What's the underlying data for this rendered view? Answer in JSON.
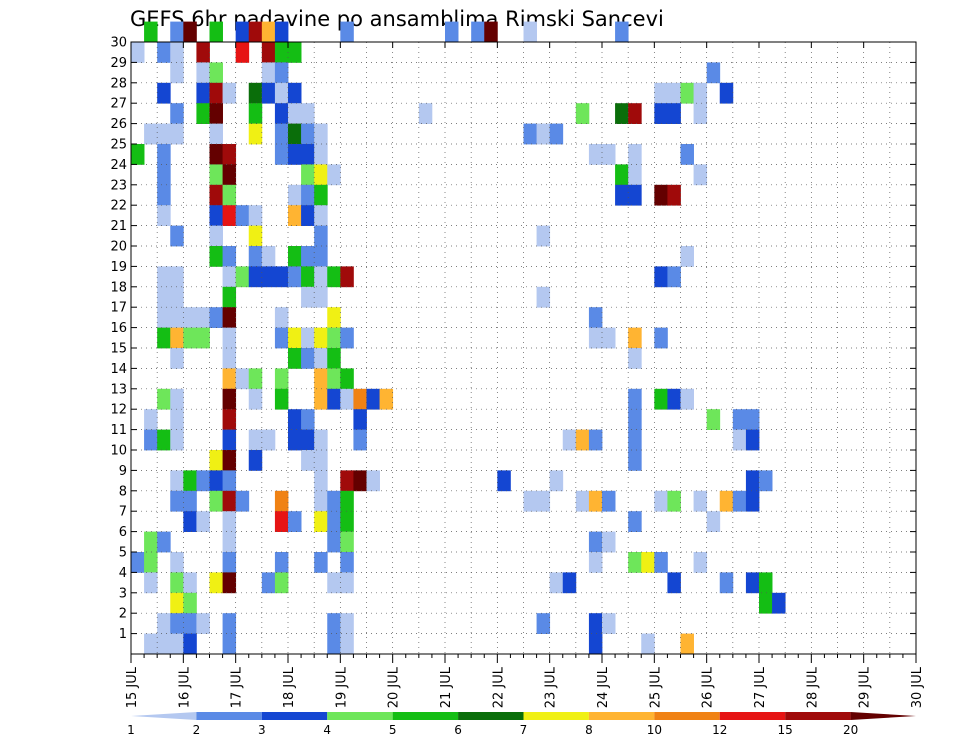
{
  "chart_data": {
    "type": "heatmap",
    "title": "GEFS 6hr padavine po ansamblima Rimski Sancevi",
    "x_ticks": [
      "15 JUL",
      "16 JUL",
      "17 JUL",
      "18 JUL",
      "19 JUL",
      "20 JUL",
      "21 JUL",
      "22 JUL",
      "23 JUL",
      "24 JUL",
      "25 JUL",
      "26 JUL",
      "27 JUL",
      "28 JUL",
      "29 JUL",
      "30 JUL"
    ],
    "y_ticks": [
      "1",
      "2",
      "3",
      "4",
      "5",
      "6",
      "7",
      "8",
      "9",
      "10",
      "11",
      "12",
      "13",
      "14",
      "15",
      "16",
      "17",
      "18",
      "19",
      "20",
      "21",
      "22",
      "23",
      "24",
      "25",
      "26",
      "27",
      "28",
      "29",
      "30"
    ],
    "xlim": [
      0,
      60
    ],
    "ylim": [
      0,
      30
    ],
    "grid": true,
    "colorbar": {
      "labels": [
        "1",
        "2",
        "3",
        "4",
        "5",
        "6",
        "7",
        "8",
        "10",
        "12",
        "15",
        "20"
      ],
      "colors": [
        "#b4c8f0",
        "#5a8ae6",
        "#1446d2",
        "#6ee65a",
        "#14be14",
        "#0a6e0a",
        "#f0f014",
        "#ffb432",
        "#f08214",
        "#e61414",
        "#a00a0a",
        "#640000"
      ]
    },
    "cells": [
      [
        1,
        30,
        4
      ],
      [
        3,
        30,
        1
      ],
      [
        4,
        30,
        11
      ],
      [
        6,
        30,
        4
      ],
      [
        8,
        30,
        2
      ],
      [
        9,
        30,
        10
      ],
      [
        10,
        30,
        7
      ],
      [
        11,
        30,
        2
      ],
      [
        16,
        30,
        1
      ],
      [
        24,
        30,
        1
      ],
      [
        26,
        30,
        1
      ],
      [
        27,
        30,
        11
      ],
      [
        30,
        30,
        0
      ],
      [
        37,
        30,
        1
      ],
      [
        0,
        29,
        0
      ],
      [
        2,
        29,
        1
      ],
      [
        3,
        29,
        0
      ],
      [
        5,
        29,
        10
      ],
      [
        8,
        29,
        9
      ],
      [
        10,
        29,
        10
      ],
      [
        11,
        29,
        4
      ],
      [
        12,
        29,
        4
      ],
      [
        3,
        28,
        0
      ],
      [
        5,
        28,
        0
      ],
      [
        6,
        28,
        3
      ],
      [
        10,
        28,
        0
      ],
      [
        11,
        28,
        1
      ],
      [
        44,
        28,
        1
      ],
      [
        2,
        27,
        2
      ],
      [
        5,
        27,
        2
      ],
      [
        6,
        27,
        10
      ],
      [
        7,
        27,
        0
      ],
      [
        9,
        27,
        5
      ],
      [
        10,
        27,
        2
      ],
      [
        11,
        27,
        0
      ],
      [
        12,
        27,
        2
      ],
      [
        40,
        27,
        0
      ],
      [
        41,
        27,
        0
      ],
      [
        42,
        27,
        3
      ],
      [
        43,
        27,
        0
      ],
      [
        45,
        27,
        2
      ],
      [
        3,
        26,
        1
      ],
      [
        5,
        26,
        4
      ],
      [
        6,
        26,
        11
      ],
      [
        9,
        26,
        4
      ],
      [
        11,
        26,
        2
      ],
      [
        12,
        26,
        0
      ],
      [
        13,
        26,
        0
      ],
      [
        22,
        26,
        0
      ],
      [
        34,
        26,
        3
      ],
      [
        37,
        26,
        5
      ],
      [
        38,
        26,
        10
      ],
      [
        40,
        26,
        2
      ],
      [
        41,
        26,
        2
      ],
      [
        43,
        26,
        0
      ],
      [
        1,
        25,
        0
      ],
      [
        2,
        25,
        0
      ],
      [
        3,
        25,
        0
      ],
      [
        6,
        25,
        0
      ],
      [
        9,
        25,
        6
      ],
      [
        11,
        25,
        1
      ],
      [
        12,
        25,
        5
      ],
      [
        13,
        25,
        1
      ],
      [
        14,
        25,
        0
      ],
      [
        30,
        25,
        1
      ],
      [
        31,
        25,
        0
      ],
      [
        32,
        25,
        1
      ],
      [
        0,
        24,
        4
      ],
      [
        2,
        24,
        1
      ],
      [
        6,
        24,
        11
      ],
      [
        7,
        24,
        10
      ],
      [
        11,
        24,
        1
      ],
      [
        12,
        24,
        2
      ],
      [
        13,
        24,
        2
      ],
      [
        14,
        24,
        0
      ],
      [
        35,
        24,
        0
      ],
      [
        36,
        24,
        0
      ],
      [
        38,
        24,
        0
      ],
      [
        42,
        24,
        1
      ],
      [
        2,
        23,
        1
      ],
      [
        6,
        23,
        3
      ],
      [
        7,
        23,
        11
      ],
      [
        13,
        23,
        3
      ],
      [
        14,
        23,
        6
      ],
      [
        15,
        23,
        0
      ],
      [
        37,
        23,
        4
      ],
      [
        38,
        23,
        0
      ],
      [
        43,
        23,
        0
      ],
      [
        2,
        22,
        1
      ],
      [
        6,
        22,
        10
      ],
      [
        7,
        22,
        3
      ],
      [
        12,
        22,
        0
      ],
      [
        13,
        22,
        1
      ],
      [
        14,
        22,
        4
      ],
      [
        37,
        22,
        2
      ],
      [
        38,
        22,
        2
      ],
      [
        40,
        22,
        11
      ],
      [
        41,
        22,
        10
      ],
      [
        2,
        21,
        0
      ],
      [
        6,
        21,
        2
      ],
      [
        7,
        21,
        9
      ],
      [
        8,
        21,
        1
      ],
      [
        9,
        21,
        0
      ],
      [
        12,
        21,
        7
      ],
      [
        13,
        21,
        2
      ],
      [
        14,
        21,
        0
      ],
      [
        3,
        20,
        1
      ],
      [
        6,
        20,
        0
      ],
      [
        9,
        20,
        6
      ],
      [
        14,
        20,
        1
      ],
      [
        31,
        20,
        0
      ],
      [
        6,
        19,
        4
      ],
      [
        7,
        19,
        1
      ],
      [
        9,
        19,
        1
      ],
      [
        10,
        19,
        0
      ],
      [
        12,
        19,
        4
      ],
      [
        13,
        19,
        1
      ],
      [
        14,
        19,
        1
      ],
      [
        42,
        19,
        0
      ],
      [
        2,
        18,
        0
      ],
      [
        3,
        18,
        0
      ],
      [
        7,
        18,
        0
      ],
      [
        8,
        18,
        3
      ],
      [
        9,
        18,
        2
      ],
      [
        10,
        18,
        2
      ],
      [
        11,
        18,
        2
      ],
      [
        12,
        18,
        1
      ],
      [
        13,
        18,
        4
      ],
      [
        14,
        18,
        0
      ],
      [
        15,
        18,
        4
      ],
      [
        16,
        18,
        10
      ],
      [
        40,
        18,
        2
      ],
      [
        41,
        18,
        1
      ],
      [
        2,
        17,
        0
      ],
      [
        3,
        17,
        0
      ],
      [
        7,
        17,
        4
      ],
      [
        13,
        17,
        0
      ],
      [
        14,
        17,
        0
      ],
      [
        31,
        17,
        0
      ],
      [
        2,
        16,
        0
      ],
      [
        3,
        16,
        0
      ],
      [
        4,
        16,
        0
      ],
      [
        5,
        16,
        0
      ],
      [
        6,
        16,
        1
      ],
      [
        7,
        16,
        11
      ],
      [
        11,
        16,
        0
      ],
      [
        15,
        16,
        6
      ],
      [
        35,
        16,
        1
      ],
      [
        2,
        15,
        4
      ],
      [
        3,
        15,
        7
      ],
      [
        4,
        15,
        3
      ],
      [
        5,
        15,
        3
      ],
      [
        7,
        15,
        0
      ],
      [
        11,
        15,
        1
      ],
      [
        12,
        15,
        6
      ],
      [
        13,
        15,
        0
      ],
      [
        14,
        15,
        6
      ],
      [
        15,
        15,
        3
      ],
      [
        16,
        15,
        1
      ],
      [
        35,
        15,
        0
      ],
      [
        36,
        15,
        0
      ],
      [
        38,
        15,
        7
      ],
      [
        40,
        15,
        1
      ],
      [
        3,
        14,
        0
      ],
      [
        7,
        14,
        0
      ],
      [
        12,
        14,
        4
      ],
      [
        13,
        14,
        1
      ],
      [
        14,
        14,
        0
      ],
      [
        15,
        14,
        4
      ],
      [
        38,
        14,
        0
      ],
      [
        7,
        13,
        7
      ],
      [
        8,
        13,
        0
      ],
      [
        9,
        13,
        3
      ],
      [
        11,
        13,
        3
      ],
      [
        14,
        13,
        7
      ],
      [
        15,
        13,
        3
      ],
      [
        16,
        13,
        4
      ],
      [
        2,
        12,
        3
      ],
      [
        3,
        12,
        0
      ],
      [
        7,
        12,
        11
      ],
      [
        9,
        12,
        0
      ],
      [
        11,
        12,
        4
      ],
      [
        14,
        12,
        7
      ],
      [
        15,
        12,
        2
      ],
      [
        16,
        12,
        0
      ],
      [
        17,
        12,
        8
      ],
      [
        18,
        12,
        2
      ],
      [
        19,
        12,
        7
      ],
      [
        38,
        12,
        1
      ],
      [
        40,
        12,
        4
      ],
      [
        41,
        12,
        2
      ],
      [
        42,
        12,
        0
      ],
      [
        1,
        11,
        0
      ],
      [
        3,
        11,
        0
      ],
      [
        7,
        11,
        10
      ],
      [
        12,
        11,
        2
      ],
      [
        13,
        11,
        1
      ],
      [
        17,
        11,
        2
      ],
      [
        38,
        11,
        1
      ],
      [
        44,
        11,
        3
      ],
      [
        46,
        11,
        1
      ],
      [
        47,
        11,
        1
      ],
      [
        1,
        10,
        1
      ],
      [
        2,
        10,
        4
      ],
      [
        3,
        10,
        0
      ],
      [
        7,
        10,
        2
      ],
      [
        9,
        10,
        0
      ],
      [
        10,
        10,
        0
      ],
      [
        12,
        10,
        2
      ],
      [
        13,
        10,
        2
      ],
      [
        14,
        10,
        0
      ],
      [
        17,
        10,
        1
      ],
      [
        33,
        10,
        0
      ],
      [
        34,
        10,
        7
      ],
      [
        35,
        10,
        1
      ],
      [
        38,
        10,
        1
      ],
      [
        46,
        10,
        0
      ],
      [
        47,
        10,
        2
      ],
      [
        6,
        9,
        6
      ],
      [
        7,
        9,
        11
      ],
      [
        9,
        9,
        2
      ],
      [
        13,
        9,
        0
      ],
      [
        14,
        9,
        0
      ],
      [
        38,
        9,
        1
      ],
      [
        3,
        8,
        0
      ],
      [
        4,
        8,
        4
      ],
      [
        5,
        8,
        1
      ],
      [
        6,
        8,
        2
      ],
      [
        7,
        8,
        1
      ],
      [
        14,
        8,
        0
      ],
      [
        16,
        8,
        10
      ],
      [
        17,
        8,
        11
      ],
      [
        18,
        8,
        0
      ],
      [
        28,
        8,
        2
      ],
      [
        32,
        8,
        0
      ],
      [
        47,
        8,
        2
      ],
      [
        48,
        8,
        1
      ],
      [
        3,
        7,
        1
      ],
      [
        4,
        7,
        1
      ],
      [
        6,
        7,
        3
      ],
      [
        7,
        7,
        10
      ],
      [
        8,
        7,
        1
      ],
      [
        11,
        7,
        8
      ],
      [
        14,
        7,
        0
      ],
      [
        15,
        7,
        1
      ],
      [
        16,
        7,
        4
      ],
      [
        30,
        7,
        0
      ],
      [
        31,
        7,
        0
      ],
      [
        34,
        7,
        0
      ],
      [
        35,
        7,
        7
      ],
      [
        36,
        7,
        1
      ],
      [
        40,
        7,
        0
      ],
      [
        41,
        7,
        3
      ],
      [
        43,
        7,
        0
      ],
      [
        45,
        7,
        7
      ],
      [
        46,
        7,
        1
      ],
      [
        47,
        7,
        2
      ],
      [
        4,
        6,
        2
      ],
      [
        5,
        6,
        0
      ],
      [
        7,
        6,
        0
      ],
      [
        11,
        6,
        9
      ],
      [
        12,
        6,
        1
      ],
      [
        14,
        6,
        6
      ],
      [
        15,
        6,
        1
      ],
      [
        16,
        6,
        4
      ],
      [
        38,
        6,
        1
      ],
      [
        44,
        6,
        0
      ],
      [
        1,
        5,
        3
      ],
      [
        2,
        5,
        1
      ],
      [
        7,
        5,
        0
      ],
      [
        15,
        5,
        1
      ],
      [
        16,
        5,
        3
      ],
      [
        35,
        5,
        1
      ],
      [
        36,
        5,
        0
      ],
      [
        0,
        4,
        1
      ],
      [
        1,
        4,
        3
      ],
      [
        3,
        4,
        0
      ],
      [
        7,
        4,
        1
      ],
      [
        11,
        4,
        1
      ],
      [
        14,
        4,
        1
      ],
      [
        16,
        4,
        1
      ],
      [
        35,
        4,
        0
      ],
      [
        38,
        4,
        3
      ],
      [
        39,
        4,
        6
      ],
      [
        40,
        4,
        1
      ],
      [
        43,
        4,
        0
      ],
      [
        1,
        3,
        0
      ],
      [
        3,
        3,
        3
      ],
      [
        4,
        3,
        0
      ],
      [
        6,
        3,
        6
      ],
      [
        7,
        3,
        11
      ],
      [
        10,
        3,
        1
      ],
      [
        11,
        3,
        3
      ],
      [
        15,
        3,
        0
      ],
      [
        16,
        3,
        0
      ],
      [
        32,
        3,
        0
      ],
      [
        33,
        3,
        2
      ],
      [
        41,
        3,
        2
      ],
      [
        45,
        3,
        1
      ],
      [
        47,
        3,
        2
      ],
      [
        48,
        3,
        4
      ],
      [
        3,
        2,
        6
      ],
      [
        4,
        2,
        3
      ],
      [
        48,
        2,
        4
      ],
      [
        49,
        2,
        2
      ],
      [
        2,
        1,
        0
      ],
      [
        3,
        1,
        1
      ],
      [
        4,
        1,
        1
      ],
      [
        5,
        1,
        0
      ],
      [
        7,
        1,
        1
      ],
      [
        15,
        1,
        1
      ],
      [
        16,
        1,
        0
      ],
      [
        31,
        1,
        1
      ],
      [
        35,
        1,
        2
      ],
      [
        36,
        1,
        0
      ],
      [
        1,
        0,
        0
      ],
      [
        2,
        0,
        0
      ],
      [
        3,
        0,
        0
      ],
      [
        4,
        0,
        2
      ],
      [
        7,
        0,
        1
      ],
      [
        15,
        0,
        1
      ],
      [
        16,
        0,
        0
      ],
      [
        35,
        0,
        2
      ],
      [
        39,
        0,
        0
      ],
      [
        42,
        0,
        7
      ]
    ]
  }
}
